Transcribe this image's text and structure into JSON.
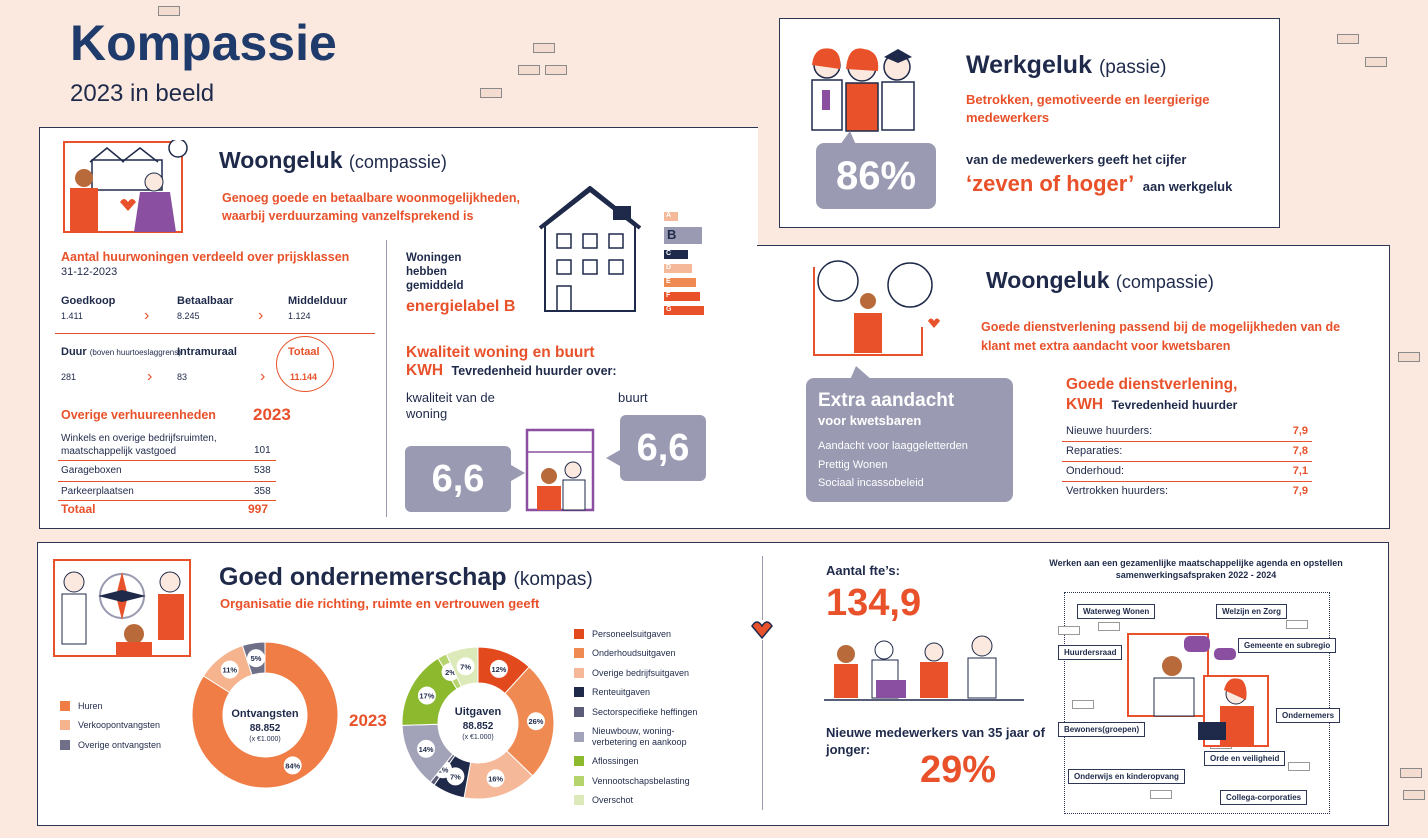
{
  "header": {
    "title": "Kompassie",
    "subtitle": "2023 in beeld"
  },
  "werkgeluk": {
    "title": "Werkgeluk",
    "title_suffix": "(passie)",
    "desc": "Betrokken, gemotiveerde en leergierige medewerkers",
    "percent": "86%",
    "text1": "van de medewerkers geeft het cijfer",
    "quote": "‘zeven of hoger’",
    "text2": "aan werkgeluk"
  },
  "woongeluk1": {
    "title": "Woongeluk",
    "title_suffix": "(compassie)",
    "desc": "Genoeg goede en betaalbare woonmogelijkheden, waarbij verduurzaming vanzelfsprekend is",
    "rent_title": "Aantal huurwoningen verdeeld over prijsklassen",
    "rent_date": "31-12-2023",
    "rent": [
      {
        "label": "Goedkoop",
        "value": "1.411"
      },
      {
        "label": "Betaalbaar",
        "value": "8.245"
      },
      {
        "label": "Middelduur",
        "value": "1.124"
      },
      {
        "label": "Duur",
        "sub": "(boven huurtoeslaggrens)",
        "value": "281"
      },
      {
        "label": "Intramuraal",
        "value": "83"
      },
      {
        "label": "Totaal",
        "value": "11.144"
      }
    ],
    "other_title": "Overige verhuureenheden",
    "other_year": "2023",
    "other": [
      {
        "label": "Winkels en overige bedrijfsruimten, maatschappelijk vastgoed",
        "value": "101"
      },
      {
        "label": "Garageboxen",
        "value": "538"
      },
      {
        "label": "Parkeerplaatsen",
        "value": "358"
      }
    ],
    "other_total_label": "Totaal",
    "other_total_value": "997",
    "energy_text": "Woningen hebben gemiddeld",
    "energy_label": "energielabel B",
    "energy_classes": [
      "A",
      "B",
      "C",
      "D",
      "E",
      "F",
      "G"
    ],
    "kwh_title": "Kwaliteit woning en buurt",
    "kwh_label": "KWH",
    "kwh_sub": "Tevredenheid huurder over:",
    "woning_label": "kwaliteit van de woning",
    "woning_score": "6,6",
    "buurt_label": "buurt",
    "buurt_score": "6,6"
  },
  "woongeluk2": {
    "title": "Woongeluk",
    "title_suffix": "(compassie)",
    "desc": "Goede dienstverlening passend bij de mogelijkheden van de klant met extra aandacht voor kwetsbaren",
    "extra_title": "Extra aandacht",
    "extra_sub": "voor kwetsbaren",
    "extra_items": [
      "Aandacht voor laaggeletterden",
      "Prettig Wonen",
      "Sociaal incassobeleid"
    ],
    "service_title": "Goede dienstverlening,",
    "service_kwh": "KWH",
    "service_sub": "Tevredenheid huurder",
    "service": [
      {
        "label": "Nieuwe huurders:",
        "value": "7,9"
      },
      {
        "label": "Reparaties:",
        "value": "7,8"
      },
      {
        "label": "Onderhoud:",
        "value": "7,1"
      },
      {
        "label": "Vertrokken huurders:",
        "value": "7,9"
      }
    ]
  },
  "ondernemerschap": {
    "title": "Goed ondernemerschap",
    "title_suffix": "(kompas)",
    "desc": "Organisatie die richting, ruimte en vertrouwen geeft",
    "year": "2023",
    "fte_label": "Aantal fte’s:",
    "fte_value": "134,9",
    "young_label": "Nieuwe medewerkers van 35 jaar of jonger:",
    "young_value": "29%",
    "agenda_title": "Werken aan een gezamenlijke maatschappelijke agenda en opstellen samenwerkingsafspraken 2022 - 2024",
    "partners": [
      "Waterweg Wonen",
      "Welzijn en Zorg",
      "Huurdersraad",
      "Gemeente en subregio",
      "Ondernemers",
      "Bewoners(groepen)",
      "Orde en veiligheid",
      "Onderwijs en kinderopvang",
      "Collega-corporaties"
    ]
  },
  "chart_data": [
    {
      "type": "pie",
      "title": "Ontvangsten",
      "total": "88.852",
      "unit": "(x €1.000)",
      "series": [
        {
          "name": "Huren",
          "value": 84,
          "color": "#ef7d45"
        },
        {
          "name": "Verkoopontvangsten",
          "value": 11,
          "color": "#f5b48e"
        },
        {
          "name": "Overige ontvangsten",
          "value": 5,
          "color": "#6f7088"
        }
      ]
    },
    {
      "type": "pie",
      "title": "Uitgaven",
      "total": "88.852",
      "unit": "(x €1.000)",
      "series": [
        {
          "name": "Personeelsuitgaven",
          "value": 12,
          "color": "#e24a1d"
        },
        {
          "name": "Onderhoudsuitgaven",
          "value": 26,
          "color": "#ef8a52"
        },
        {
          "name": "Overige bedrijfsuitgaven",
          "value": 16,
          "color": "#f5b898"
        },
        {
          "name": "Renteuitgaven",
          "value": 7,
          "color": "#1f2a4a"
        },
        {
          "name": "Sectorspecifieke heffingen",
          "value": 1,
          "color": "#5a5c78"
        },
        {
          "name": "Nieuwbouw, woning-verbetering en aankoop",
          "value": 14,
          "color": "#a2a3b8"
        },
        {
          "name": "Aflossingen",
          "value": 17,
          "color": "#8db92e"
        },
        {
          "name": "Vennootschapsbelasting",
          "value": 2,
          "color": "#b5d46d"
        },
        {
          "name": "Overschot",
          "value": 7,
          "color": "#dce9b8"
        }
      ]
    }
  ],
  "colors": {
    "navy": "#1f2a4a",
    "orange": "#e8512a",
    "grey": "#9a9bb2",
    "bg": "#fbe9df"
  }
}
